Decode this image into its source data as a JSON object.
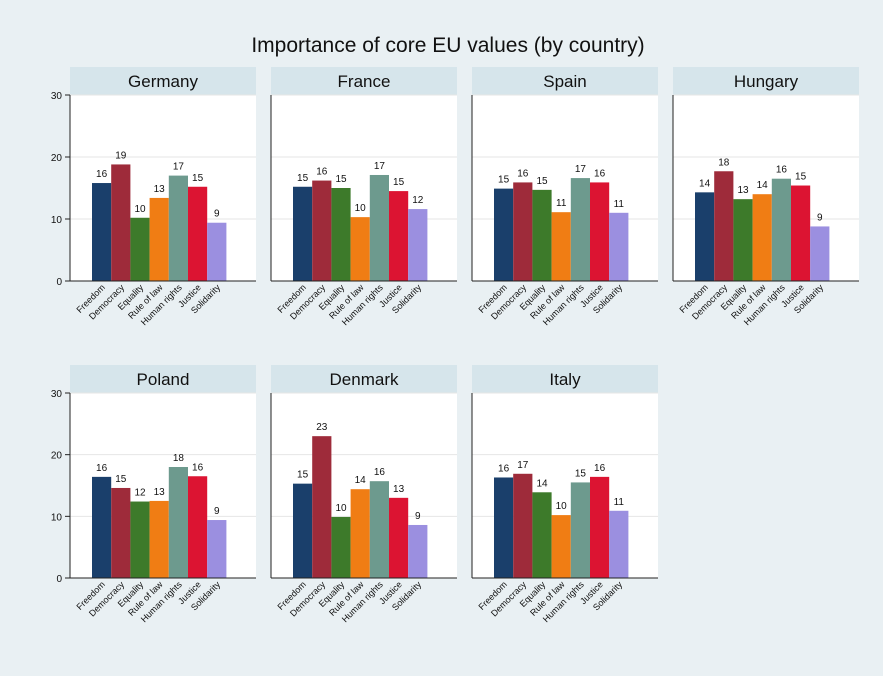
{
  "chart_data": {
    "type": "bar",
    "title": "Importance of core EU values (by country)",
    "categories": [
      "Freedom",
      "Democracy",
      "Equality",
      "Rule of law",
      "Human rights",
      "Justice",
      "Solidarity"
    ],
    "colors": [
      "#1a3f6b",
      "#9e2b3a",
      "#3d7a2a",
      "#f07d14",
      "#6d9a8e",
      "#dc1432",
      "#9b8fe0"
    ],
    "ylim": [
      0,
      30
    ],
    "yticks": [
      0,
      10,
      20,
      30
    ],
    "grid": true,
    "panels": [
      {
        "name": "Germany",
        "values": [
          16,
          19,
          10,
          13,
          17,
          15,
          9
        ],
        "heights": [
          15.8,
          18.8,
          10.2,
          13.4,
          17.0,
          15.2,
          9.4
        ]
      },
      {
        "name": "France",
        "values": [
          15,
          16,
          15,
          10,
          17,
          15,
          12
        ],
        "heights": [
          15.2,
          16.2,
          15.0,
          10.3,
          17.1,
          14.5,
          11.6
        ]
      },
      {
        "name": "Spain",
        "values": [
          15,
          16,
          15,
          11,
          17,
          16,
          11
        ],
        "heights": [
          14.9,
          15.9,
          14.7,
          11.1,
          16.6,
          15.9,
          11.0
        ]
      },
      {
        "name": "Hungary",
        "values": [
          14,
          18,
          13,
          14,
          16,
          15,
          9
        ],
        "heights": [
          14.3,
          17.7,
          13.2,
          14.0,
          16.5,
          15.4,
          8.8
        ]
      },
      {
        "name": "Poland",
        "values": [
          16,
          15,
          12,
          13,
          18,
          16,
          9
        ],
        "heights": [
          16.4,
          14.6,
          12.4,
          12.5,
          18.0,
          16.5,
          9.4
        ]
      },
      {
        "name": "Denmark",
        "values": [
          15,
          23,
          10,
          14,
          16,
          13,
          9
        ],
        "heights": [
          15.3,
          23.0,
          9.9,
          14.4,
          15.7,
          13.0,
          8.6
        ]
      },
      {
        "name": "Italy",
        "values": [
          16,
          17,
          14,
          10,
          15,
          16,
          11
        ],
        "heights": [
          16.3,
          16.9,
          13.9,
          10.2,
          15.5,
          16.4,
          10.9
        ]
      }
    ]
  }
}
